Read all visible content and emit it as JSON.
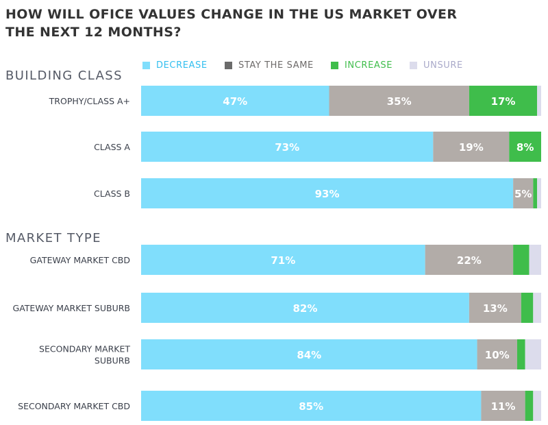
{
  "title_line1": "HOW WILL OFICE VALUES CHANGE IN THE US MARKET OVER",
  "title_line2": "THE NEXT 12 MONTHS?",
  "colors": {
    "decrease": "#80defc",
    "stay_the_same": "#b2aca8",
    "increase": "#3fbd4b",
    "unsure": "#dcdcec",
    "legend_decrease_text": "#33bfef",
    "legend_stay_text": "#6d6a69",
    "legend_increase_text": "#3fbd4b",
    "legend_unsure_text": "#a9a9c9",
    "legend_stay_swatch": "#6b6b6b"
  },
  "chart_data": {
    "type": "bar",
    "orientation": "horizontal",
    "stacked": true,
    "x_range": [
      0,
      100
    ],
    "unit": "%",
    "legend_position": "top",
    "series": [
      {
        "key": "decrease",
        "name": "DECREASE"
      },
      {
        "key": "stay_the_same",
        "name": "STAY THE SAME"
      },
      {
        "key": "increase",
        "name": "INCREASE"
      },
      {
        "key": "unsure",
        "name": "UNSURE"
      }
    ],
    "groups": [
      {
        "name": "BUILDING CLASS",
        "rows": [
          {
            "lines": [
              "TROPHY/CLASS A+"
            ],
            "decrease": 47,
            "stay_the_same": 35,
            "increase": 17,
            "unsure": 1,
            "labels": {
              "decrease": "47%",
              "stay_the_same": "35%",
              "increase": "17%"
            }
          },
          {
            "lines": [
              "CLASS A"
            ],
            "decrease": 73,
            "stay_the_same": 19,
            "increase": 8,
            "unsure": 0,
            "labels": {
              "decrease": "73%",
              "stay_the_same": "19%",
              "increase": "8%"
            }
          },
          {
            "lines": [
              "CLASS B"
            ],
            "decrease": 93,
            "stay_the_same": 5,
            "increase": 1,
            "unsure": 1,
            "labels": {
              "decrease": "93%",
              "stay_the_same": "5%"
            }
          }
        ]
      },
      {
        "name": "MARKET TYPE",
        "rows": [
          {
            "lines": [
              "GATEWAY MARKET CBD"
            ],
            "decrease": 71,
            "stay_the_same": 22,
            "increase": 4,
            "unsure": 3,
            "labels": {
              "decrease": "71%",
              "stay_the_same": "22%"
            }
          },
          {
            "lines": [
              "GATEWAY MARKET SUBURB"
            ],
            "decrease": 82,
            "stay_the_same": 13,
            "increase": 3,
            "unsure": 2,
            "labels": {
              "decrease": "82%",
              "stay_the_same": "13%"
            }
          },
          {
            "lines": [
              "SECONDARY MARKET",
              "SUBURB"
            ],
            "decrease": 84,
            "stay_the_same": 10,
            "increase": 2,
            "unsure": 4,
            "labels": {
              "decrease": "84%",
              "stay_the_same": "10%"
            }
          },
          {
            "lines": [
              "SECONDARY MARKET CBD"
            ],
            "decrease": 85,
            "stay_the_same": 11,
            "increase": 2,
            "unsure": 2,
            "labels": {
              "decrease": "85%",
              "stay_the_same": "11%"
            }
          }
        ]
      }
    ]
  }
}
